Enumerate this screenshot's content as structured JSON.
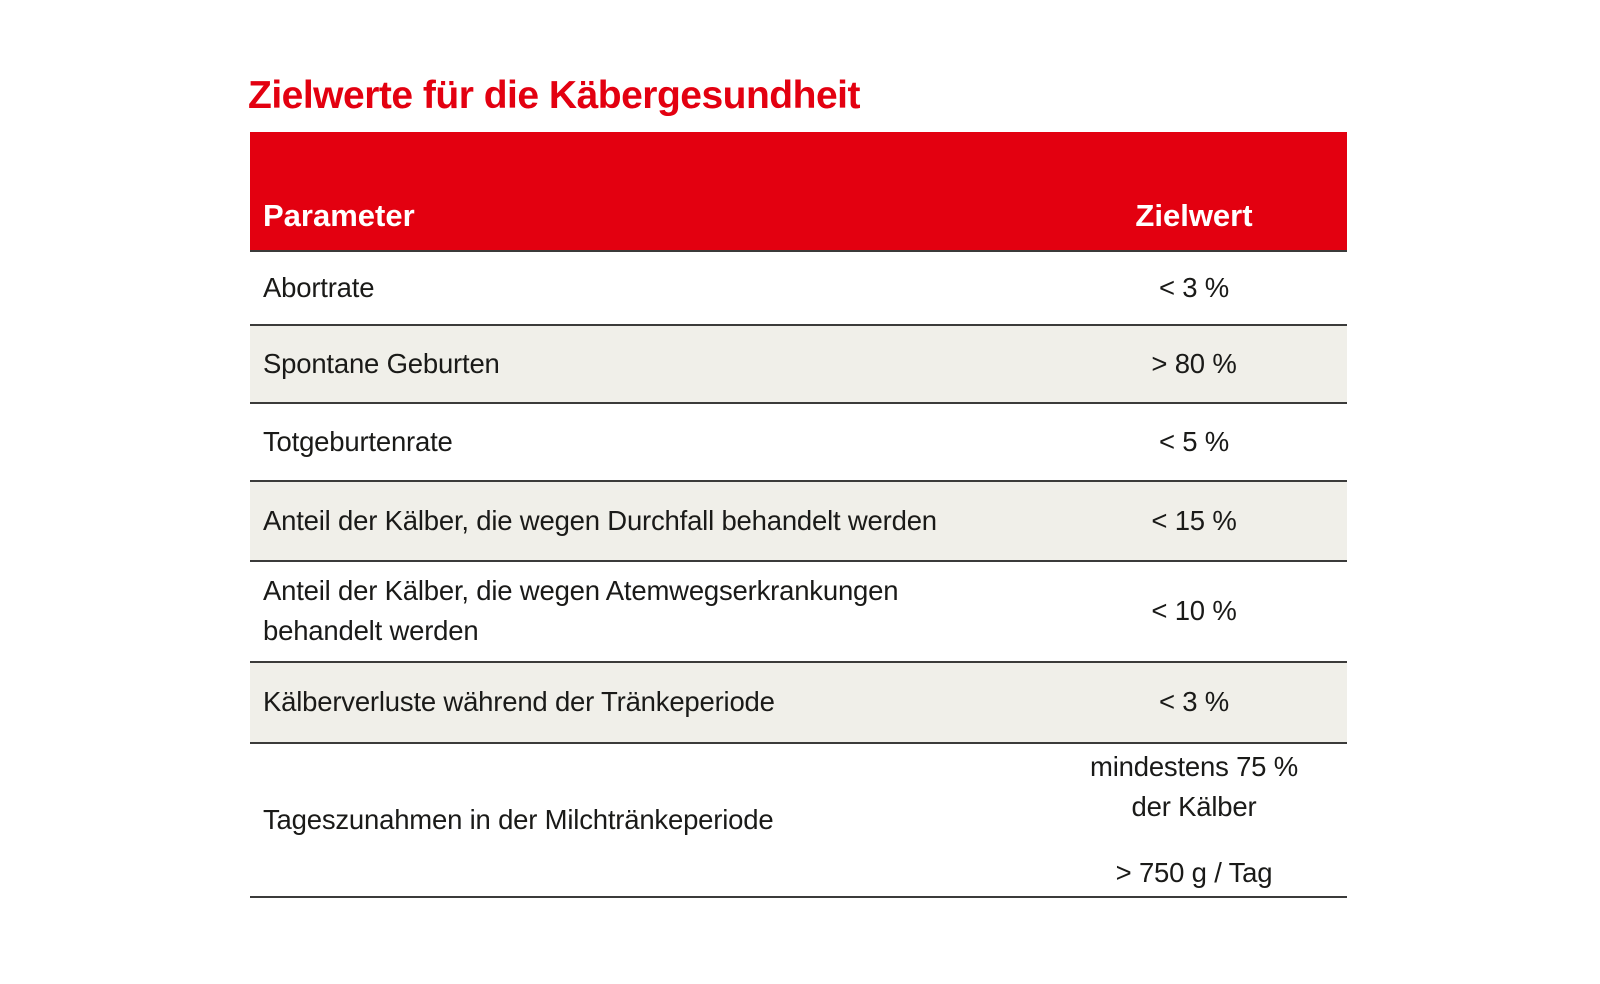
{
  "title": "Zielwerte für die Käbergesundheit",
  "colors": {
    "accent_red": "#e30010",
    "row_alt_bg": "#f0efe9",
    "border": "#3b3b3a",
    "text": "#1a1a18",
    "header_text": "#ffffff"
  },
  "table": {
    "headers": {
      "parameter": "Parameter",
      "target": "Zielwert"
    },
    "rows": [
      {
        "parameter": "Abortrate",
        "value": "< 3 %"
      },
      {
        "parameter": "Spontane Geburten",
        "value": "> 80 %"
      },
      {
        "parameter": "Totgeburtenrate",
        "value": "< 5 %"
      },
      {
        "parameter": "Anteil der Kälber, die wegen Durchfall behandelt werden",
        "value": "< 15 %"
      },
      {
        "parameter_line1": "Anteil der Kälber, die wegen Atemwegserkrankungen",
        "parameter_line2": "behandelt werden",
        "value": "< 10 %"
      },
      {
        "parameter": "Kälberverluste während der Tränkeperiode",
        "value": "< 3 %"
      },
      {
        "parameter": "Tageszunahmen in der Milchtränkeperiode",
        "value_line1": "mindestens 75 %",
        "value_line2": "der Kälber",
        "value_line3": "> 750 g / Tag"
      }
    ]
  },
  "chart_data": {
    "type": "table",
    "title": "Zielwerte für die Käbergesundheit",
    "columns": [
      "Parameter",
      "Zielwert"
    ],
    "rows": [
      [
        "Abortrate",
        "< 3 %"
      ],
      [
        "Spontane Geburten",
        "> 80 %"
      ],
      [
        "Totgeburtenrate",
        "< 5 %"
      ],
      [
        "Anteil der Kälber, die wegen Durchfall behandelt werden",
        "< 15 %"
      ],
      [
        "Anteil der Kälber, die wegen Atemwegserkrankungen behandelt werden",
        "< 10 %"
      ],
      [
        "Kälberverluste während der Tränkeperiode",
        "< 3 %"
      ],
      [
        "Tageszunahmen in der Milchtränkeperiode",
        "mindestens 75 % der Kälber / > 750 g / Tag"
      ]
    ],
    "layout": {
      "header_bg": "#e30010",
      "zebra_striping": true,
      "value_column_align": "center"
    }
  }
}
